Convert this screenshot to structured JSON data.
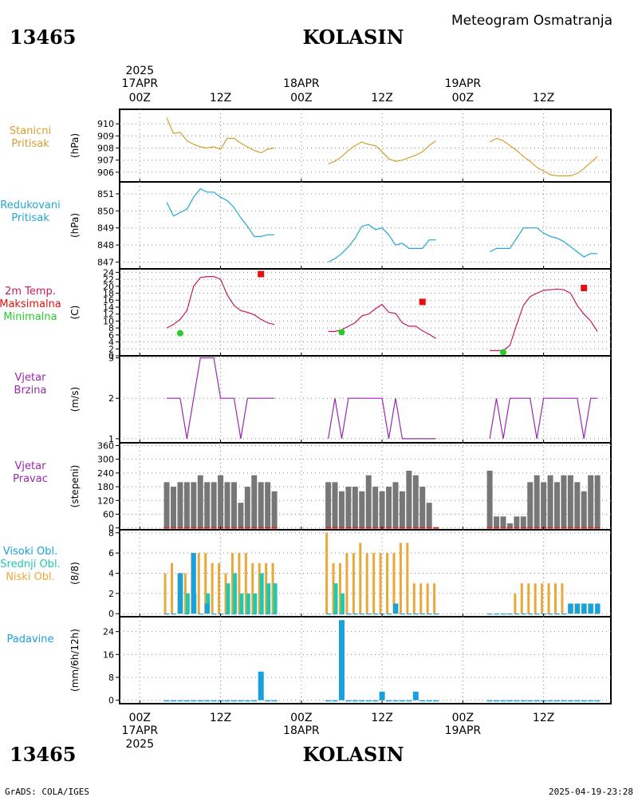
{
  "header": {
    "station_id": "13465",
    "station_name": "KOLASIN",
    "title": "Meteogram Osmatranja"
  },
  "footer": {
    "station_id": "13465",
    "station_name": "KOLASIN",
    "left_credit": "GrADS: COLA/IGES",
    "timestamp": "2025-04-19-23:28"
  },
  "time_axis": {
    "year": "2025",
    "ticks": [
      {
        "hour": 0,
        "label": "00Z",
        "date": "17APR"
      },
      {
        "hour": 12,
        "label": "12Z",
        "date": ""
      },
      {
        "hour": 24,
        "label": "00Z",
        "date": "18APR"
      },
      {
        "hour": 36,
        "label": "12Z",
        "date": ""
      },
      {
        "hour": 48,
        "label": "00Z",
        "date": "19APR"
      },
      {
        "hour": 60,
        "label": "12Z",
        "date": ""
      }
    ],
    "range_hours": [
      -3,
      70
    ]
  },
  "colors": {
    "station_pressure": "#d4a030",
    "reduced_pressure": "#22a8d2",
    "temperature": "#c8185a",
    "tmax": "#e41010",
    "tmin": "#28cc28",
    "wind": "#9a28b0",
    "wind_dir_bar": "#777777",
    "high_cloud": "#1aa0dc",
    "mid_cloud": "#20c8b0",
    "low_cloud": "#e8a93a",
    "precip": "#1aa0dc"
  },
  "chart_data": [
    {
      "type": "line",
      "id": "station_pressure",
      "label_lines": [
        "Stanicni",
        "Pritisak"
      ],
      "ylabel": "(hPa)",
      "ylim": [
        905.2,
        911.2
      ],
      "yticks": [
        906,
        907,
        908,
        909,
        910
      ],
      "series": [
        {
          "x": [
            4,
            5,
            6,
            7,
            8,
            9,
            10,
            11,
            12,
            13,
            14,
            15,
            16,
            17,
            18,
            19,
            20
          ],
          "y": [
            910.5,
            909.2,
            909.3,
            908.6,
            908.3,
            908.1,
            908.0,
            908.1,
            907.9,
            908.8,
            908.8,
            908.4,
            908.1,
            907.8,
            907.6,
            907.9,
            908.0
          ]
        },
        {
          "x": [
            28,
            29,
            30,
            31,
            32,
            33,
            34,
            35,
            36,
            37,
            38,
            39,
            40,
            41,
            42,
            43,
            44
          ],
          "y": [
            906.7,
            906.9,
            907.3,
            907.8,
            908.2,
            908.5,
            908.3,
            908.2,
            907.7,
            907.1,
            906.9,
            907.0,
            907.2,
            907.4,
            907.7,
            908.2,
            908.6
          ]
        },
        {
          "x": [
            52,
            53,
            54,
            55,
            56,
            57,
            58,
            59,
            60,
            61,
            62,
            63,
            64,
            65,
            66,
            67,
            68
          ],
          "y": [
            908.5,
            908.8,
            908.6,
            908.2,
            907.8,
            907.3,
            906.9,
            906.4,
            906.1,
            905.8,
            905.7,
            905.7,
            905.7,
            905.9,
            906.3,
            906.8,
            907.3
          ]
        }
      ]
    },
    {
      "type": "line",
      "id": "reduced_pressure",
      "label_lines": [
        "Redukovani",
        "Pritisak"
      ],
      "ylabel": "(hPa)",
      "ylim": [
        846.6,
        851.7
      ],
      "yticks": [
        847,
        848,
        849,
        850,
        851
      ],
      "series": [
        {
          "x": [
            4,
            5,
            6,
            7,
            8,
            9,
            10,
            11,
            12,
            13,
            14,
            15,
            16,
            17,
            18,
            19,
            20
          ],
          "y": [
            850.5,
            849.7,
            849.9,
            850.1,
            850.8,
            851.3,
            851.1,
            851.1,
            850.8,
            850.6,
            850.2,
            849.6,
            849.1,
            848.5,
            848.5,
            848.6,
            848.6
          ]
        },
        {
          "x": [
            28,
            29,
            30,
            31,
            32,
            33,
            34,
            35,
            36,
            37,
            38,
            39,
            40,
            41,
            42,
            43,
            44
          ],
          "y": [
            847.0,
            847.2,
            847.5,
            847.9,
            848.4,
            849.1,
            849.2,
            848.9,
            849.0,
            848.6,
            848.0,
            848.1,
            847.8,
            847.8,
            847.8,
            848.3,
            848.3
          ]
        },
        {
          "x": [
            52,
            53,
            54,
            55,
            56,
            57,
            58,
            59,
            60,
            61,
            62,
            63,
            64,
            65,
            66,
            67,
            68
          ],
          "y": [
            847.6,
            847.8,
            847.8,
            847.8,
            848.4,
            849.0,
            849.0,
            849.0,
            848.7,
            848.5,
            848.4,
            848.2,
            847.9,
            847.6,
            847.3,
            847.5,
            847.5
          ]
        }
      ]
    },
    {
      "type": "line",
      "id": "temperature",
      "label_lines": [
        "2m Temp.",
        "Maksimalna",
        "Minimalna"
      ],
      "ylabel": "(C)",
      "ylim": [
        0,
        25
      ],
      "yticks": [
        0,
        2,
        4,
        6,
        8,
        10,
        12,
        14,
        16,
        18,
        20,
        22,
        24
      ],
      "series": [
        {
          "x": [
            4,
            5,
            6,
            7,
            8,
            9,
            10,
            11,
            12,
            13,
            14,
            15,
            16,
            17,
            18,
            19,
            20
          ],
          "y": [
            8.0,
            9.0,
            10.5,
            13.0,
            20.0,
            22.5,
            22.8,
            22.8,
            22.0,
            17.5,
            14.5,
            13.0,
            12.5,
            11.8,
            10.5,
            9.5,
            9.0
          ]
        },
        {
          "x": [
            28,
            29,
            30,
            31,
            32,
            33,
            34,
            35,
            36,
            37,
            38,
            39,
            40,
            41,
            42,
            43,
            44
          ],
          "y": [
            7.0,
            7.0,
            7.5,
            8.5,
            9.5,
            11.5,
            12.0,
            13.5,
            14.8,
            12.5,
            12.2,
            9.5,
            8.5,
            8.5,
            7.2,
            6.2,
            5.0
          ]
        },
        {
          "x": [
            52,
            53,
            54,
            55,
            56,
            57,
            58,
            59,
            60,
            61,
            62,
            63,
            64,
            65,
            66,
            67,
            68
          ],
          "y": [
            1.5,
            1.5,
            1.5,
            3.0,
            9.0,
            14.5,
            17.0,
            18.0,
            18.8,
            19.0,
            19.2,
            19.0,
            18.0,
            14.5,
            12.0,
            10.0,
            7.0
          ]
        }
      ],
      "max_points": {
        "x": [
          18,
          42,
          66
        ],
        "y": [
          23.5,
          15.5,
          19.5
        ],
        "name": "Maksimalna"
      },
      "min_points": {
        "x": [
          6,
          30,
          54
        ],
        "y": [
          6.5,
          6.8,
          1.0
        ],
        "name": "Minimalna"
      }
    },
    {
      "type": "line",
      "id": "wind_speed",
      "label_lines": [
        "Vjetar",
        "Brzina"
      ],
      "ylabel": "(m/s)",
      "ylim": [
        0.9,
        3.05
      ],
      "yticks": [
        1,
        2,
        3
      ],
      "series": [
        {
          "x": [
            4,
            5,
            6,
            7,
            8,
            9,
            10,
            11,
            12,
            13,
            14,
            15,
            16,
            17,
            18,
            19,
            20
          ],
          "y": [
            2,
            2,
            2,
            1,
            2,
            3,
            3,
            3,
            2,
            2,
            2,
            1,
            2,
            2,
            2,
            2,
            2
          ]
        },
        {
          "x": [
            28,
            29,
            30,
            31,
            32,
            33,
            34,
            35,
            36,
            37,
            38,
            39,
            40,
            41,
            42,
            43,
            44
          ],
          "y": [
            1,
            2,
            1,
            2,
            2,
            2,
            2,
            2,
            2,
            1,
            2,
            1,
            1,
            1,
            1,
            1,
            1
          ]
        },
        {
          "x": [
            52,
            53,
            54,
            55,
            56,
            57,
            58,
            59,
            60,
            61,
            62,
            63,
            64,
            65,
            66,
            67,
            68
          ],
          "y": [
            1,
            2,
            1,
            2,
            2,
            2,
            2,
            1,
            2,
            2,
            2,
            2,
            2,
            2,
            1,
            2,
            2
          ]
        }
      ]
    },
    {
      "type": "bar",
      "id": "wind_direction",
      "label_lines": [
        "Vjetar",
        "Pravac"
      ],
      "ylabel": "(stepeni)",
      "ylim": [
        -8,
        372
      ],
      "yticks": [
        0,
        60,
        120,
        180,
        240,
        300,
        360
      ],
      "x": [
        4,
        5,
        6,
        7,
        8,
        9,
        10,
        11,
        12,
        13,
        14,
        15,
        16,
        17,
        18,
        19,
        20,
        28,
        29,
        30,
        31,
        32,
        33,
        34,
        35,
        36,
        37,
        38,
        39,
        40,
        41,
        42,
        43,
        44,
        52,
        53,
        54,
        55,
        56,
        57,
        58,
        59,
        60,
        61,
        62,
        63,
        64,
        65,
        66,
        67,
        68
      ],
      "values": [
        200,
        180,
        200,
        200,
        200,
        230,
        200,
        200,
        230,
        200,
        200,
        110,
        180,
        230,
        200,
        200,
        160,
        200,
        200,
        160,
        180,
        180,
        160,
        230,
        180,
        160,
        180,
        200,
        160,
        250,
        230,
        180,
        110,
        0,
        250,
        50,
        50,
        20,
        50,
        50,
        200,
        230,
        200,
        230,
        200,
        230,
        230,
        200,
        160,
        230,
        230
      ],
      "calm_marks": true
    },
    {
      "type": "bar",
      "id": "clouds",
      "label_lines": [
        "Visoki Obl.",
        "Srednji Obl.",
        "Niski Obl."
      ],
      "ylabel": "(8/8)",
      "ylim": [
        -0.3,
        8.3
      ],
      "yticks": [
        0,
        2,
        4,
        6,
        8
      ],
      "x": [
        4,
        5,
        6,
        7,
        8,
        9,
        10,
        11,
        12,
        13,
        14,
        15,
        16,
        17,
        18,
        19,
        20,
        28,
        29,
        30,
        31,
        32,
        33,
        34,
        35,
        36,
        37,
        38,
        39,
        40,
        41,
        42,
        43,
        44,
        52,
        53,
        54,
        55,
        56,
        57,
        58,
        59,
        60,
        61,
        62,
        63,
        64,
        65,
        66,
        67,
        68
      ],
      "series": [
        {
          "name": "Niski Obl.",
          "values": [
            4,
            5,
            4,
            4,
            6,
            6,
            6,
            5,
            5,
            4,
            6,
            6,
            6,
            5,
            5,
            5,
            5,
            8,
            5,
            5,
            6,
            6,
            7,
            6,
            6,
            6,
            6,
            6,
            7,
            7,
            3,
            3,
            3,
            3,
            0,
            0,
            0,
            0,
            2,
            3,
            3,
            3,
            3,
            3,
            3,
            3,
            1,
            1,
            1,
            1,
            0
          ]
        },
        {
          "name": "Srednji Obl.",
          "values": [
            0,
            0,
            4,
            2,
            2,
            0,
            2,
            0,
            0,
            3,
            4,
            2,
            2,
            2,
            4,
            3,
            3,
            0,
            3,
            2,
            0,
            0,
            0,
            0,
            0,
            0,
            0,
            1,
            0,
            0,
            0,
            0,
            0,
            0,
            0,
            0,
            0,
            0,
            0,
            0,
            0,
            0,
            0,
            0,
            0,
            0,
            1,
            1,
            1,
            1,
            1
          ]
        },
        {
          "name": "Visoki Obl.",
          "values": [
            0,
            0,
            4,
            0,
            6,
            0,
            1,
            0,
            0,
            0,
            0,
            0,
            0,
            0,
            0,
            0,
            0,
            0,
            0,
            0,
            0,
            0,
            0,
            0,
            0,
            0,
            0,
            1,
            0,
            0,
            0,
            0,
            0,
            0,
            0,
            0,
            0,
            0,
            0,
            0,
            0,
            0,
            0,
            0,
            0,
            0,
            1,
            1,
            1,
            1,
            1
          ]
        }
      ]
    },
    {
      "type": "bar",
      "id": "precipitation",
      "label_lines": [
        "Padavine"
      ],
      "ylabel": "(mm/6h/12h)",
      "ylim": [
        -1.2,
        29.2
      ],
      "yticks": [
        0,
        8,
        16,
        24
      ],
      "x": [
        4,
        5,
        6,
        7,
        8,
        9,
        10,
        11,
        12,
        13,
        14,
        15,
        16,
        17,
        18,
        19,
        20,
        28,
        29,
        30,
        31,
        32,
        33,
        34,
        35,
        36,
        37,
        38,
        39,
        40,
        41,
        42,
        43,
        44,
        52,
        53,
        54,
        55,
        56,
        57,
        58,
        59,
        60,
        61,
        62,
        63,
        64,
        65,
        66,
        67,
        68
      ],
      "values": [
        0,
        0,
        0,
        0,
        0,
        0,
        0,
        0,
        0,
        0,
        0,
        0,
        0,
        0,
        10,
        0,
        0,
        0,
        0,
        28,
        0,
        0,
        0,
        0,
        0,
        3,
        0,
        0,
        0,
        0,
        3,
        0,
        0,
        0,
        0,
        0,
        0,
        0,
        0,
        0,
        0,
        0,
        0,
        0,
        0,
        0,
        0,
        0,
        0,
        0,
        0
      ]
    }
  ]
}
